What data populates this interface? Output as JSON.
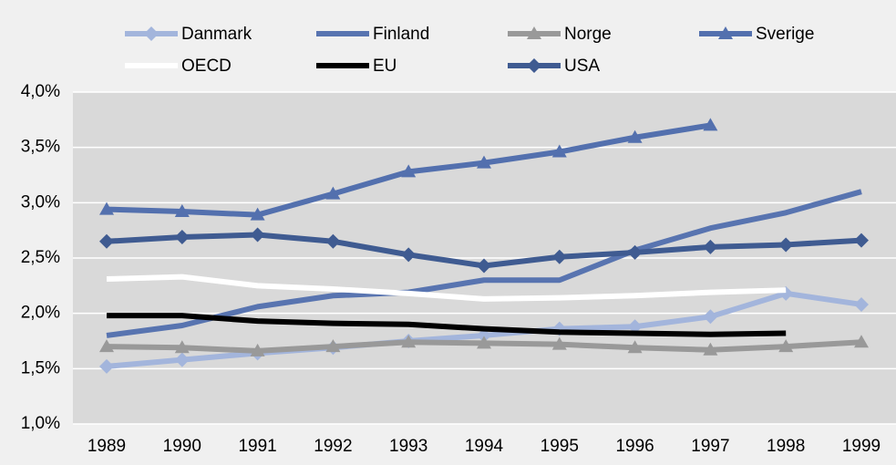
{
  "chart_data": {
    "type": "line",
    "categories": [
      "1989",
      "1990",
      "1991",
      "1992",
      "1993",
      "1994",
      "1995",
      "1996",
      "1997",
      "1998",
      "1999"
    ],
    "series": [
      {
        "name": "Danmark",
        "color": "#a3b5dc",
        "marker": "diamond",
        "values": [
          1.52,
          1.58,
          1.64,
          1.69,
          1.75,
          1.8,
          1.86,
          1.88,
          1.97,
          2.18,
          2.08
        ]
      },
      {
        "name": "Finland",
        "color": "#5874b0",
        "marker": "none",
        "values": [
          1.8,
          1.89,
          2.06,
          2.16,
          2.19,
          2.3,
          2.3,
          2.57,
          2.77,
          2.91,
          3.1
        ]
      },
      {
        "name": "Norge",
        "color": "#999999",
        "marker": "triangle",
        "values": [
          1.7,
          1.69,
          1.66,
          1.7,
          1.74,
          1.73,
          1.72,
          1.69,
          1.67,
          1.7,
          1.74
        ]
      },
      {
        "name": "Sverige",
        "color": "#5370ae",
        "marker": "triangle",
        "values": [
          2.94,
          2.92,
          2.89,
          3.08,
          3.28,
          3.36,
          3.46,
          3.59,
          3.7,
          null,
          null
        ]
      },
      {
        "name": "OECD",
        "color": "#ffffff",
        "marker": "none",
        "values": [
          2.31,
          2.33,
          2.25,
          2.22,
          2.18,
          2.13,
          2.14,
          2.16,
          2.19,
          2.21,
          null
        ]
      },
      {
        "name": "EU",
        "color": "#000000",
        "marker": "none",
        "values": [
          1.98,
          1.98,
          1.93,
          1.91,
          1.9,
          1.86,
          1.83,
          1.82,
          1.81,
          1.82,
          null
        ]
      },
      {
        "name": "USA",
        "color": "#3f5b91",
        "marker": "diamond",
        "values": [
          2.65,
          2.69,
          2.71,
          2.65,
          2.53,
          2.43,
          2.51,
          2.55,
          2.6,
          2.62,
          2.66
        ]
      }
    ],
    "ylim": [
      1,
      4
    ],
    "yticks": [
      {
        "value": 1,
        "label": "1,0%"
      },
      {
        "value": 1.5,
        "label": "1,5%"
      },
      {
        "value": 2,
        "label": "2,0%"
      },
      {
        "value": 2.5,
        "label": "2,5%"
      },
      {
        "value": 3,
        "label": "3,0%"
      },
      {
        "value": 3.5,
        "label": "3,5%"
      },
      {
        "value": 4,
        "label": "4,0%"
      }
    ],
    "grid": true
  }
}
